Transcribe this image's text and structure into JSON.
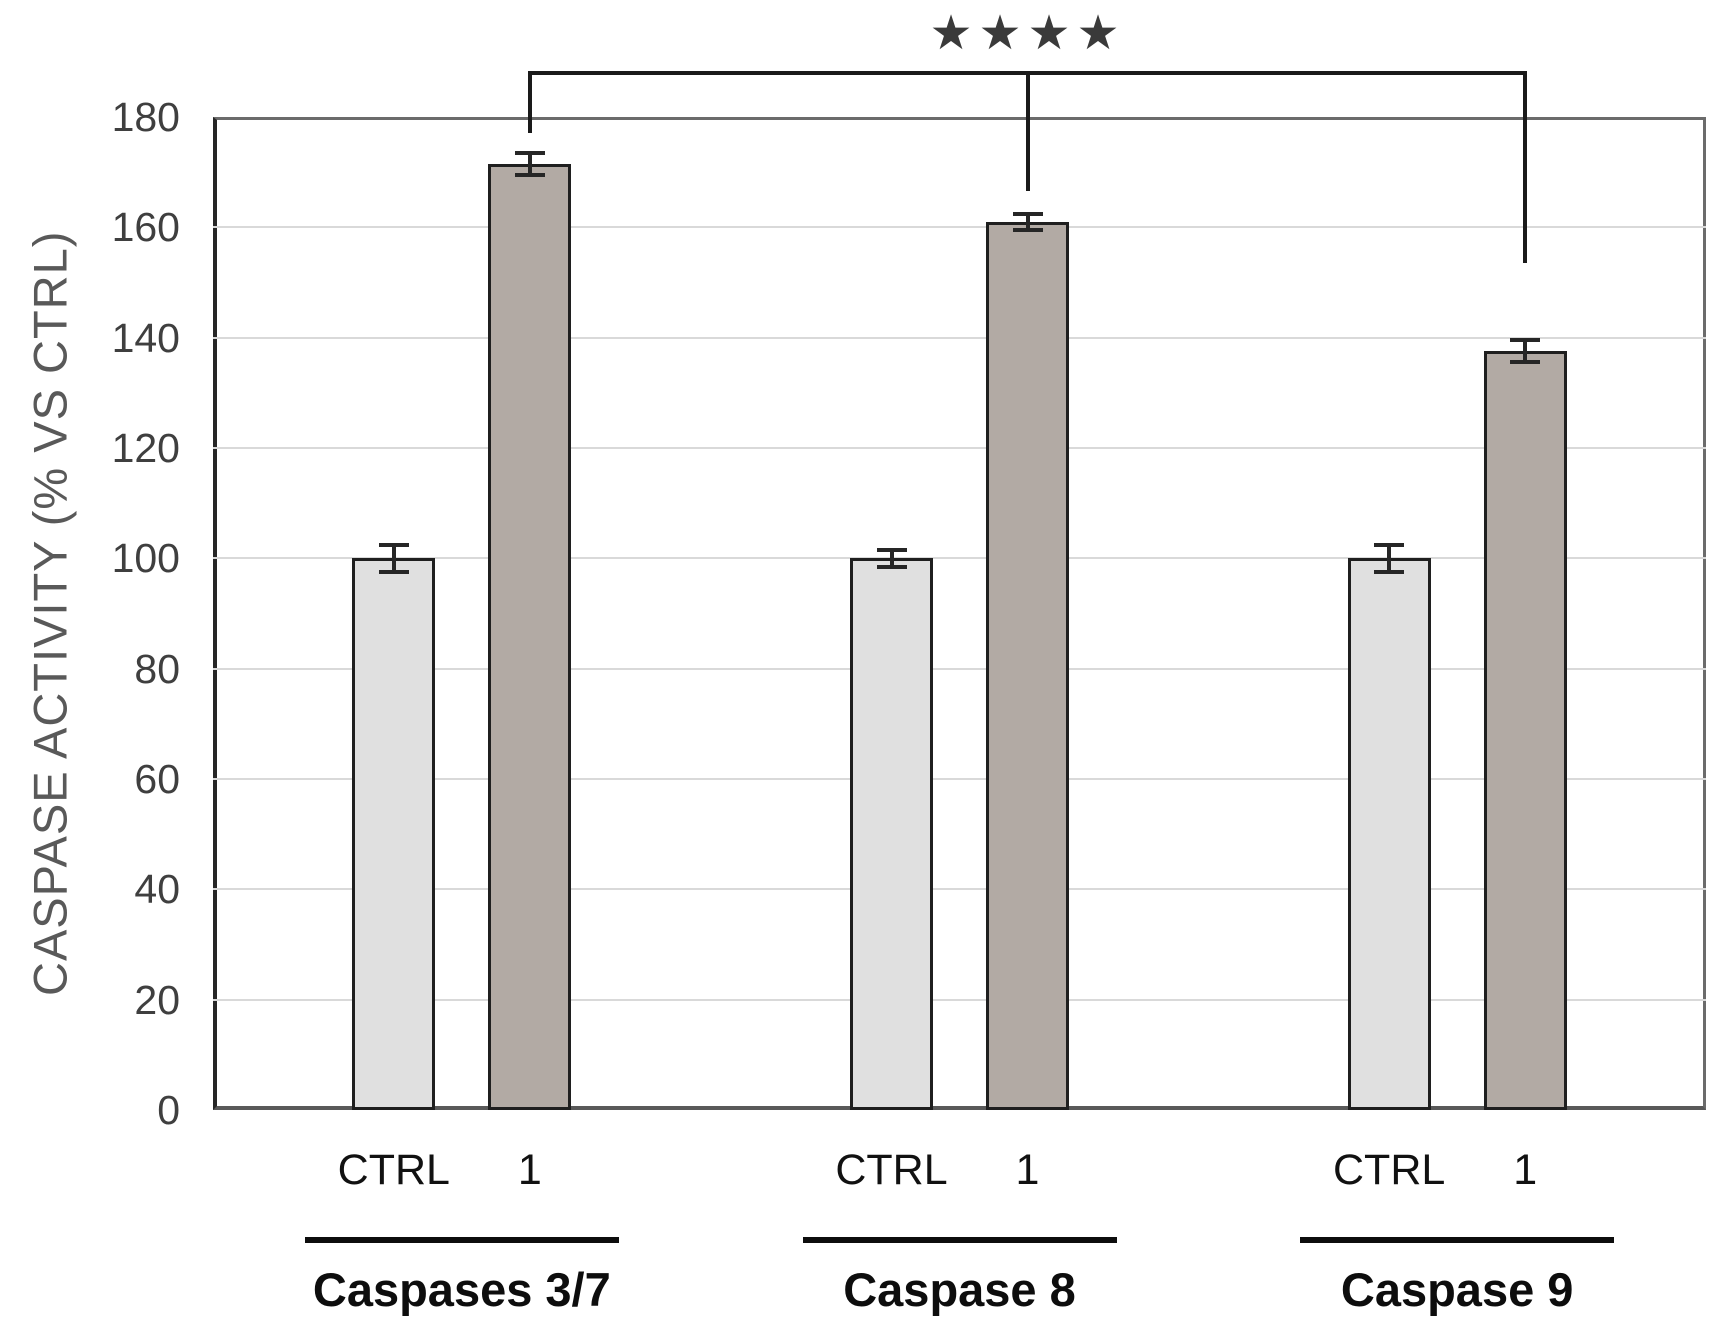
{
  "chart_data": {
    "type": "bar",
    "title": "",
    "xlabel": "",
    "ylabel": "CASPASE ACTIVITY (% VS CTRL)",
    "ylim": [
      0,
      180
    ],
    "ytick_step": 20,
    "ytick_labels": [
      "0",
      "20",
      "40",
      "60",
      "80",
      "100",
      "120",
      "140",
      "160",
      "180"
    ],
    "grid": "horizontal",
    "legend": "none",
    "series_colors": {
      "CTRL": "#e0e0e0",
      "1": "#b2aaa4"
    },
    "groups": [
      {
        "label": "Caspases 3/7",
        "bars": [
          {
            "label": "CTRL",
            "value": 100,
            "error": 2.5
          },
          {
            "label": "1",
            "value": 171.5,
            "error": 2.0
          }
        ]
      },
      {
        "label": "Caspase 8",
        "bars": [
          {
            "label": "CTRL",
            "value": 100,
            "error": 1.5
          },
          {
            "label": "1",
            "value": 161,
            "error": 1.5
          }
        ]
      },
      {
        "label": "Caspase 9",
        "bars": [
          {
            "label": "CTRL",
            "value": 100,
            "error": 2.5
          },
          {
            "label": "1",
            "value": 137.5,
            "error": 2.0
          }
        ]
      }
    ],
    "significance": {
      "label": "★★★★",
      "from_group": 0,
      "from_bar": "1",
      "to_group": 2,
      "to_bar": "1",
      "mid_group": 1
    }
  },
  "colors": {
    "background": "#ffffff",
    "bar_border": "#1f1f1f",
    "gridline": "#d9d9d9",
    "plot_border": "#6b6b6b",
    "axis_left": "#262626",
    "axis_bottom": "#595959",
    "tick_text": "#3f3f3f",
    "ylabel_text": "#595959",
    "label_text": "#111111",
    "bracket": "#1a1a1a",
    "stars": "#3a3a3a",
    "error_bar": "#262626"
  }
}
